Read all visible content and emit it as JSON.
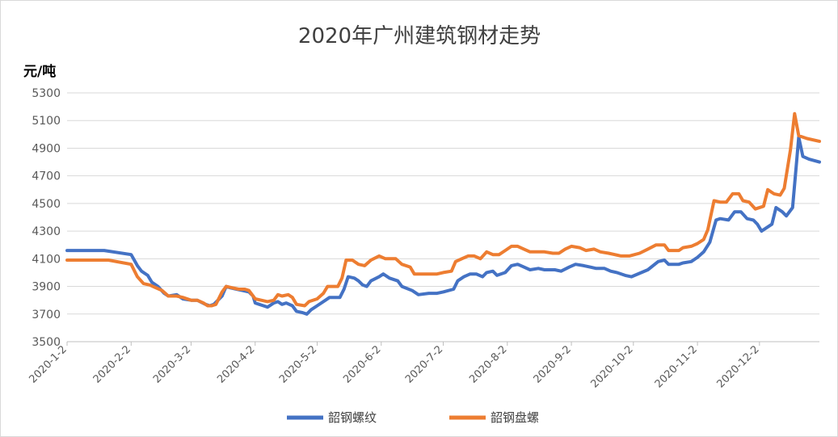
{
  "chart_data": {
    "type": "line",
    "title": "2020年广州建筑钢材走势",
    "y_unit_label": "元/吨",
    "ylim": [
      3500,
      5300
    ],
    "yticks": [
      3500,
      3700,
      3900,
      4100,
      4300,
      4500,
      4700,
      4900,
      5100,
      5300
    ],
    "grid": true,
    "legend_position": "bottom",
    "x_tick_labels": [
      "2020-1-2",
      "2020-2-2",
      "2020-3-2",
      "2020-4-2",
      "2020-5-2",
      "2020-6-2",
      "2020-7-2",
      "2020-8-2",
      "2020-9-2",
      "2020-10-2",
      "2020-11-2",
      "2020-12-2"
    ],
    "x_tick_dates": [
      "2020-01-02",
      "2020-02-02",
      "2020-03-02",
      "2020-04-02",
      "2020-05-02",
      "2020-06-02",
      "2020-07-02",
      "2020-08-02",
      "2020-09-02",
      "2020-10-02",
      "2020-11-02",
      "2020-12-02"
    ],
    "x_end_date": "2020-12-31",
    "series": [
      {
        "name": "韶钢螺纹",
        "color": "#4472C4",
        "points": [
          [
            "2020-01-02",
            4160
          ],
          [
            "2020-01-20",
            4160
          ],
          [
            "2020-02-02",
            4130
          ],
          [
            "2020-02-05",
            4050
          ],
          [
            "2020-02-07",
            4010
          ],
          [
            "2020-02-10",
            3980
          ],
          [
            "2020-02-12",
            3930
          ],
          [
            "2020-02-15",
            3900
          ],
          [
            "2020-02-18",
            3850
          ],
          [
            "2020-02-20",
            3830
          ],
          [
            "2020-02-24",
            3840
          ],
          [
            "2020-02-27",
            3810
          ],
          [
            "2020-03-02",
            3800
          ],
          [
            "2020-03-05",
            3800
          ],
          [
            "2020-03-09",
            3770
          ],
          [
            "2020-03-11",
            3760
          ],
          [
            "2020-03-13",
            3770
          ],
          [
            "2020-03-17",
            3830
          ],
          [
            "2020-03-19",
            3900
          ],
          [
            "2020-03-21",
            3890
          ],
          [
            "2020-03-24",
            3880
          ],
          [
            "2020-03-27",
            3870
          ],
          [
            "2020-03-30",
            3860
          ],
          [
            "2020-04-01",
            3830
          ],
          [
            "2020-04-02",
            3780
          ],
          [
            "2020-04-04",
            3770
          ],
          [
            "2020-04-06",
            3760
          ],
          [
            "2020-04-08",
            3750
          ],
          [
            "2020-04-11",
            3780
          ],
          [
            "2020-04-13",
            3790
          ],
          [
            "2020-04-15",
            3770
          ],
          [
            "2020-04-17",
            3780
          ],
          [
            "2020-04-20",
            3760
          ],
          [
            "2020-04-22",
            3720
          ],
          [
            "2020-04-25",
            3710
          ],
          [
            "2020-04-27",
            3700
          ],
          [
            "2020-04-29",
            3730
          ],
          [
            "2020-05-02",
            3760
          ],
          [
            "2020-05-06",
            3800
          ],
          [
            "2020-05-08",
            3820
          ],
          [
            "2020-05-13",
            3820
          ],
          [
            "2020-05-15",
            3880
          ],
          [
            "2020-05-17",
            3970
          ],
          [
            "2020-05-20",
            3960
          ],
          [
            "2020-05-22",
            3940
          ],
          [
            "2020-05-24",
            3910
          ],
          [
            "2020-05-26",
            3900
          ],
          [
            "2020-05-28",
            3940
          ],
          [
            "2020-06-01",
            3970
          ],
          [
            "2020-06-03",
            3990
          ],
          [
            "2020-06-06",
            3960
          ],
          [
            "2020-06-10",
            3940
          ],
          [
            "2020-06-12",
            3900
          ],
          [
            "2020-06-17",
            3870
          ],
          [
            "2020-06-20",
            3840
          ],
          [
            "2020-06-25",
            3850
          ],
          [
            "2020-06-29",
            3850
          ],
          [
            "2020-07-02",
            3860
          ],
          [
            "2020-07-07",
            3880
          ],
          [
            "2020-07-09",
            3940
          ],
          [
            "2020-07-12",
            3970
          ],
          [
            "2020-07-15",
            3990
          ],
          [
            "2020-07-18",
            3990
          ],
          [
            "2020-07-21",
            3970
          ],
          [
            "2020-07-23",
            4000
          ],
          [
            "2020-07-26",
            4010
          ],
          [
            "2020-07-28",
            3980
          ],
          [
            "2020-08-01",
            4000
          ],
          [
            "2020-08-04",
            4050
          ],
          [
            "2020-08-07",
            4060
          ],
          [
            "2020-08-10",
            4040
          ],
          [
            "2020-08-13",
            4020
          ],
          [
            "2020-08-17",
            4030
          ],
          [
            "2020-08-20",
            4020
          ],
          [
            "2020-08-25",
            4020
          ],
          [
            "2020-08-28",
            4010
          ],
          [
            "2020-09-01",
            4040
          ],
          [
            "2020-09-04",
            4060
          ],
          [
            "2020-09-08",
            4050
          ],
          [
            "2020-09-11",
            4040
          ],
          [
            "2020-09-14",
            4030
          ],
          [
            "2020-09-18",
            4030
          ],
          [
            "2020-09-21",
            4010
          ],
          [
            "2020-09-24",
            4000
          ],
          [
            "2020-09-28",
            3980
          ],
          [
            "2020-10-01",
            3970
          ],
          [
            "2020-10-09",
            4020
          ],
          [
            "2020-10-14",
            4080
          ],
          [
            "2020-10-17",
            4090
          ],
          [
            "2020-10-19",
            4060
          ],
          [
            "2020-10-24",
            4060
          ],
          [
            "2020-10-26",
            4070
          ],
          [
            "2020-10-30",
            4080
          ],
          [
            "2020-11-02",
            4110
          ],
          [
            "2020-11-05",
            4150
          ],
          [
            "2020-11-08",
            4220
          ],
          [
            "2020-11-11",
            4380
          ],
          [
            "2020-11-13",
            4390
          ],
          [
            "2020-11-17",
            4380
          ],
          [
            "2020-11-20",
            4440
          ],
          [
            "2020-11-23",
            4440
          ],
          [
            "2020-11-26",
            4390
          ],
          [
            "2020-11-29",
            4380
          ],
          [
            "2020-12-01",
            4350
          ],
          [
            "2020-12-03",
            4300
          ],
          [
            "2020-12-08",
            4350
          ],
          [
            "2020-12-10",
            4470
          ],
          [
            "2020-12-13",
            4440
          ],
          [
            "2020-12-15",
            4410
          ],
          [
            "2020-12-18",
            4470
          ],
          [
            "2020-12-20",
            4810
          ],
          [
            "2020-12-21",
            4980
          ],
          [
            "2020-12-23",
            4840
          ],
          [
            "2020-12-26",
            4820
          ],
          [
            "2020-12-31",
            4800
          ]
        ]
      },
      {
        "name": "韶钢盘螺",
        "color": "#ED7D31",
        "points": [
          [
            "2020-01-02",
            4090
          ],
          [
            "2020-01-22",
            4090
          ],
          [
            "2020-02-02",
            4060
          ],
          [
            "2020-02-05",
            3970
          ],
          [
            "2020-02-08",
            3920
          ],
          [
            "2020-02-11",
            3910
          ],
          [
            "2020-02-14",
            3890
          ],
          [
            "2020-02-17",
            3870
          ],
          [
            "2020-02-20",
            3830
          ],
          [
            "2020-02-24",
            3830
          ],
          [
            "2020-02-27",
            3820
          ],
          [
            "2020-03-02",
            3800
          ],
          [
            "2020-03-05",
            3800
          ],
          [
            "2020-03-08",
            3780
          ],
          [
            "2020-03-10",
            3760
          ],
          [
            "2020-03-12",
            3760
          ],
          [
            "2020-03-14",
            3770
          ],
          [
            "2020-03-17",
            3860
          ],
          [
            "2020-03-19",
            3900
          ],
          [
            "2020-03-22",
            3890
          ],
          [
            "2020-03-25",
            3880
          ],
          [
            "2020-03-28",
            3880
          ],
          [
            "2020-03-30",
            3870
          ],
          [
            "2020-04-02",
            3810
          ],
          [
            "2020-04-05",
            3800
          ],
          [
            "2020-04-08",
            3790
          ],
          [
            "2020-04-11",
            3800
          ],
          [
            "2020-04-13",
            3840
          ],
          [
            "2020-04-15",
            3830
          ],
          [
            "2020-04-18",
            3840
          ],
          [
            "2020-04-20",
            3820
          ],
          [
            "2020-04-22",
            3770
          ],
          [
            "2020-04-26",
            3760
          ],
          [
            "2020-04-28",
            3790
          ],
          [
            "2020-05-02",
            3810
          ],
          [
            "2020-05-05",
            3850
          ],
          [
            "2020-05-07",
            3900
          ],
          [
            "2020-05-12",
            3900
          ],
          [
            "2020-05-14",
            3960
          ],
          [
            "2020-05-16",
            4090
          ],
          [
            "2020-05-19",
            4090
          ],
          [
            "2020-05-22",
            4060
          ],
          [
            "2020-05-25",
            4050
          ],
          [
            "2020-05-28",
            4090
          ],
          [
            "2020-06-01",
            4120
          ],
          [
            "2020-06-04",
            4100
          ],
          [
            "2020-06-09",
            4100
          ],
          [
            "2020-06-12",
            4060
          ],
          [
            "2020-06-16",
            4040
          ],
          [
            "2020-06-18",
            3990
          ],
          [
            "2020-06-25",
            3990
          ],
          [
            "2020-06-29",
            3990
          ],
          [
            "2020-07-02",
            4000
          ],
          [
            "2020-07-06",
            4010
          ],
          [
            "2020-07-08",
            4080
          ],
          [
            "2020-07-11",
            4100
          ],
          [
            "2020-07-14",
            4120
          ],
          [
            "2020-07-17",
            4120
          ],
          [
            "2020-07-20",
            4100
          ],
          [
            "2020-07-23",
            4150
          ],
          [
            "2020-07-26",
            4130
          ],
          [
            "2020-07-29",
            4130
          ],
          [
            "2020-08-01",
            4160
          ],
          [
            "2020-08-04",
            4190
          ],
          [
            "2020-08-07",
            4190
          ],
          [
            "2020-08-10",
            4170
          ],
          [
            "2020-08-13",
            4150
          ],
          [
            "2020-08-17",
            4150
          ],
          [
            "2020-08-20",
            4150
          ],
          [
            "2020-08-24",
            4140
          ],
          [
            "2020-08-27",
            4140
          ],
          [
            "2020-08-30",
            4170
          ],
          [
            "2020-09-02",
            4190
          ],
          [
            "2020-09-06",
            4180
          ],
          [
            "2020-09-09",
            4160
          ],
          [
            "2020-09-13",
            4170
          ],
          [
            "2020-09-16",
            4150
          ],
          [
            "2020-09-20",
            4140
          ],
          [
            "2020-09-23",
            4130
          ],
          [
            "2020-09-26",
            4120
          ],
          [
            "2020-09-30",
            4120
          ],
          [
            "2020-10-05",
            4140
          ],
          [
            "2020-10-09",
            4170
          ],
          [
            "2020-10-13",
            4200
          ],
          [
            "2020-10-17",
            4200
          ],
          [
            "2020-10-19",
            4160
          ],
          [
            "2020-10-24",
            4160
          ],
          [
            "2020-10-26",
            4180
          ],
          [
            "2020-10-30",
            4190
          ],
          [
            "2020-11-02",
            4210
          ],
          [
            "2020-11-05",
            4240
          ],
          [
            "2020-11-07",
            4310
          ],
          [
            "2020-11-10",
            4520
          ],
          [
            "2020-11-13",
            4510
          ],
          [
            "2020-11-16",
            4510
          ],
          [
            "2020-11-19",
            4570
          ],
          [
            "2020-11-22",
            4570
          ],
          [
            "2020-11-24",
            4520
          ],
          [
            "2020-11-27",
            4510
          ],
          [
            "2020-11-30",
            4460
          ],
          [
            "2020-12-04",
            4480
          ],
          [
            "2020-12-06",
            4600
          ],
          [
            "2020-12-09",
            4570
          ],
          [
            "2020-12-12",
            4560
          ],
          [
            "2020-12-14",
            4610
          ],
          [
            "2020-12-17",
            4890
          ],
          [
            "2020-12-19",
            5150
          ],
          [
            "2020-12-21",
            4990
          ],
          [
            "2020-12-25",
            4970
          ],
          [
            "2020-12-31",
            4950
          ]
        ]
      }
    ]
  }
}
